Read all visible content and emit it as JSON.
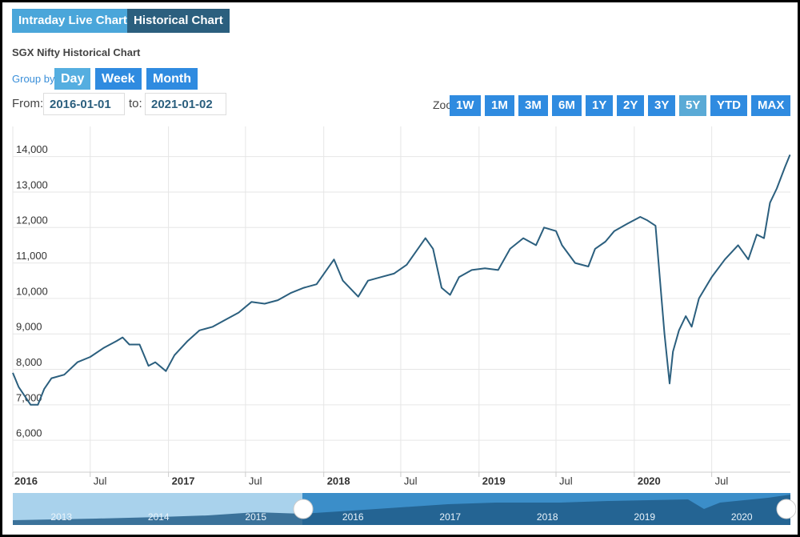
{
  "tabs": [
    "Intraday Live Chart",
    "Historical Chart"
  ],
  "title": "SGX Nifty Historical Chart",
  "group_by": {
    "label": "Group by:",
    "options": [
      "Day",
      "Week",
      "Month"
    ]
  },
  "range": {
    "from_label": "From:",
    "from": "2016-01-01",
    "to_label": "to:",
    "to": "2021-01-02"
  },
  "zoom": {
    "label": "Zoom:",
    "options": [
      "1W",
      "1M",
      "3M",
      "6M",
      "1Y",
      "2Y",
      "3Y",
      "5Y",
      "YTD",
      "MAX"
    ]
  },
  "chart_data": {
    "type": "line",
    "color": "#2b5f7e",
    "grid": true,
    "x": [
      "2016-01-01",
      "2016-01-15",
      "2016-02-12",
      "2016-02-29",
      "2016-03-15",
      "2016-04-01",
      "2016-05-01",
      "2016-06-01",
      "2016-07-01",
      "2016-08-01",
      "2016-09-01",
      "2016-09-15",
      "2016-10-01",
      "2016-10-25",
      "2016-11-15",
      "2016-12-01",
      "2016-12-26",
      "2017-01-15",
      "2017-02-15",
      "2017-03-15",
      "2017-04-15",
      "2017-05-15",
      "2017-06-15",
      "2017-07-15",
      "2017-08-15",
      "2017-09-15",
      "2017-10-15",
      "2017-11-15",
      "2017-12-15",
      "2018-01-25",
      "2018-02-15",
      "2018-03-23",
      "2018-04-15",
      "2018-05-15",
      "2018-06-15",
      "2018-07-15",
      "2018-08-28",
      "2018-09-15",
      "2018-10-05",
      "2018-10-25",
      "2018-11-15",
      "2018-12-15",
      "2019-01-15",
      "2019-02-15",
      "2019-03-15",
      "2019-04-15",
      "2019-05-15",
      "2019-06-03",
      "2019-07-01",
      "2019-07-15",
      "2019-08-15",
      "2019-09-15",
      "2019-10-01",
      "2019-10-25",
      "2019-11-15",
      "2019-12-15",
      "2020-01-15",
      "2020-02-01",
      "2020-02-20",
      "2020-03-05",
      "2020-03-12",
      "2020-03-24",
      "2020-04-01",
      "2020-04-15",
      "2020-05-01",
      "2020-05-15",
      "2020-06-01",
      "2020-07-01",
      "2020-08-01",
      "2020-09-01",
      "2020-09-25",
      "2020-10-15",
      "2020-11-01",
      "2020-11-15",
      "2020-12-01",
      "2020-12-20",
      "2021-01-01"
    ],
    "values": [
      7900,
      7500,
      7000,
      7000,
      7450,
      7750,
      7850,
      8200,
      8350,
      8600,
      8800,
      8900,
      8700,
      8700,
      8100,
      8200,
      7950,
      8400,
      8800,
      9100,
      9200,
      9400,
      9600,
      9900,
      9850,
      9950,
      10150,
      10300,
      10400,
      11100,
      10500,
      10050,
      10500,
      10600,
      10700,
      10950,
      11700,
      11400,
      10300,
      10100,
      10600,
      10800,
      10850,
      10800,
      11400,
      11700,
      11500,
      12000,
      11900,
      11500,
      11000,
      10900,
      11400,
      11600,
      11900,
      12100,
      12300,
      12200,
      12050,
      10000,
      9000,
      7600,
      8500,
      9100,
      9500,
      9200,
      10000,
      10600,
      11100,
      11500,
      11100,
      11800,
      11700,
      12700,
      13100,
      13700,
      14050
    ],
    "xlim": [
      "2016-01-01",
      "2021-01-02"
    ],
    "xticks": [
      {
        "value": "2016-01-01",
        "label": "2016"
      },
      {
        "value": "2016-07-01",
        "label": "Jul"
      },
      {
        "value": "2017-01-01",
        "label": "2017"
      },
      {
        "value": "2017-07-01",
        "label": "Jul"
      },
      {
        "value": "2018-01-01",
        "label": "2018"
      },
      {
        "value": "2018-07-01",
        "label": "Jul"
      },
      {
        "value": "2019-01-01",
        "label": "2019"
      },
      {
        "value": "2019-07-01",
        "label": "Jul"
      },
      {
        "value": "2020-01-01",
        "label": "2020"
      },
      {
        "value": "2020-07-01",
        "label": "Jul"
      }
    ],
    "ylim": [
      5100,
      14850
    ],
    "yticks": [
      {
        "value": 6000,
        "label": "6,000"
      },
      {
        "value": 7000,
        "label": "7,000"
      },
      {
        "value": 8000,
        "label": "8,000"
      },
      {
        "value": 9000,
        "label": "9,000"
      },
      {
        "value": 10000,
        "label": "10,000"
      },
      {
        "value": 11000,
        "label": "11,000"
      },
      {
        "value": 12000,
        "label": "12,000"
      },
      {
        "value": 13000,
        "label": "13,000"
      },
      {
        "value": 14000,
        "label": "14,000"
      }
    ]
  },
  "navigator": {
    "labels": [
      "2013",
      "2014",
      "2015",
      "2016",
      "2017",
      "2018",
      "2019",
      "2020"
    ]
  }
}
